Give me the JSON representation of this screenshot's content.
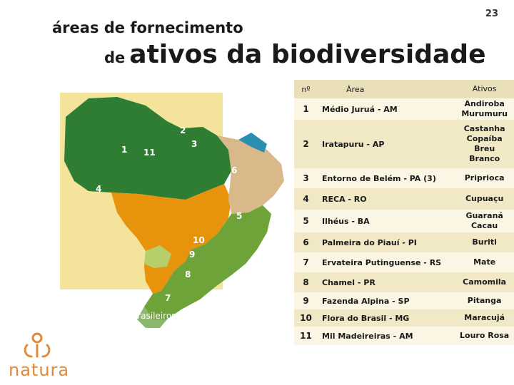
{
  "page_number": "23",
  "title": {
    "line1": "áreas de fornecimento",
    "line2_small": "de",
    "line2_big": "ativos da biodiversidade"
  },
  "map": {
    "caption": "ecossistemas brasileiros",
    "markers": [
      "1",
      "2",
      "3",
      "4",
      "5",
      "6",
      "7",
      "8",
      "9",
      "10",
      "11"
    ]
  },
  "table": {
    "headers": {
      "number": "nº",
      "area": "Área",
      "assets": "Ativos"
    },
    "rows": [
      {
        "n": "1",
        "area": "Médio Juruá - AM",
        "assets": [
          "Andiroba",
          "Murumuru"
        ]
      },
      {
        "n": "2",
        "area": "Iratapuru - AP",
        "assets": [
          "Castanha",
          "Copaíba",
          "Breu",
          "Branco"
        ]
      },
      {
        "n": "3",
        "area": "Entorno de Belém - PA (3)",
        "assets": [
          "Priprioca"
        ]
      },
      {
        "n": "4",
        "area": "RECA - RO",
        "assets": [
          "Cupuaçu"
        ]
      },
      {
        "n": "5",
        "area": "Ilhéus - BA",
        "assets": [
          "Guaraná",
          "Cacau"
        ]
      },
      {
        "n": "6",
        "area": "Palmeira do Piauí - PI",
        "assets": [
          "Buriti"
        ]
      },
      {
        "n": "7",
        "area": "Ervateira Putinguense - RS",
        "assets": [
          "Mate"
        ]
      },
      {
        "n": "8",
        "area": "Chamel - PR",
        "assets": [
          "Camomila"
        ]
      },
      {
        "n": "9",
        "area": "Fazenda Alpina - SP",
        "assets": [
          "Pitanga"
        ]
      },
      {
        "n": "10",
        "area": "Flora do Brasil - MG",
        "assets": [
          "Maracujá"
        ]
      },
      {
        "n": "11",
        "area": "Mil Madeireiras - AM",
        "assets": [
          "Louro Rosa"
        ]
      }
    ]
  },
  "logo": {
    "text": "natura"
  },
  "colors": {
    "amazon": "#2e7d32",
    "cerrado": "#e8930c",
    "caatinga": "#d4c08a",
    "atlantic_forest": "#6ea33a",
    "table_header": "#e9dfb8",
    "table_row_light": "#fbf6e3",
    "table_row_dark": "#f1e8c6",
    "brand": "#e08a3a"
  }
}
